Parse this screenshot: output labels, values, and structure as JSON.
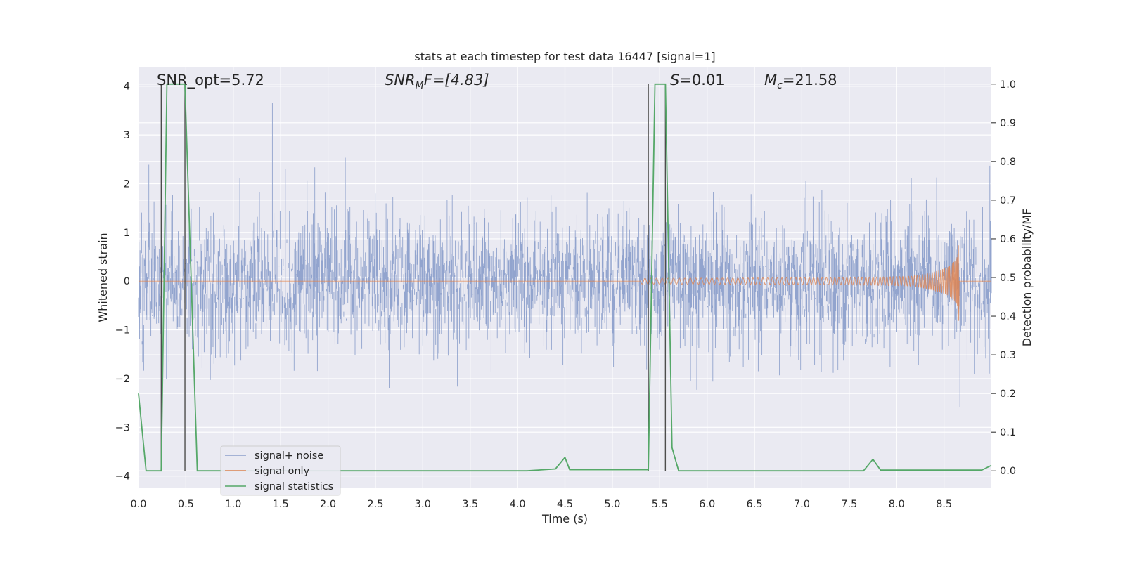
{
  "chart_data": {
    "type": "line",
    "title": "stats at each timestep for test data 16447 [signal=1]",
    "xlabel": "Time (s)",
    "ylabel_left": "Whitened strain",
    "ylabel_right": "Detection probability/MF",
    "xlim": [
      0,
      9.0
    ],
    "ylim_left": [
      -4.25,
      4.4
    ],
    "ylim_right": [
      -0.045,
      1.045
    ],
    "x_ticks": [
      "0.0",
      "0.5",
      "1.0",
      "1.5",
      "2.0",
      "2.5",
      "3.0",
      "3.5",
      "4.0",
      "4.5",
      "5.0",
      "5.5",
      "6.0",
      "6.5",
      "7.0",
      "7.5",
      "8.0",
      "8.5"
    ],
    "y_ticks_left": [
      "−4",
      "−3",
      "−2",
      "−1",
      "0",
      "1",
      "2",
      "3",
      "4"
    ],
    "y_ticks_right": [
      "0.0",
      "0.1",
      "0.2",
      "0.3",
      "0.4",
      "0.5",
      "0.6",
      "0.7",
      "0.8",
      "0.9",
      "1.0"
    ],
    "grid": true,
    "legend_position": "lower-left",
    "annotations": {
      "snr_opt": "SNR_opt=5.72",
      "snr_mf_base": "SNR",
      "snr_mf_sub": "M",
      "snr_mf_rest": "F=[4.83]",
      "s_italic": "S",
      "s_rest": "=0.01",
      "mc_italic": "M",
      "mc_sub": "c",
      "mc_rest": "=21.58"
    },
    "vertical_markers_x": [
      0.24,
      0.49,
      5.38,
      5.56
    ],
    "series": [
      {
        "name": "signal+ noise",
        "color": "#8da0cb",
        "axis": "left",
        "description_points": "noise band roughly spanning -2.8 to 2.8 with peaks up to 4.0"
      },
      {
        "name": "signal only",
        "color": "#dd8452",
        "axis": "left",
        "chirp_start_x": 5.3,
        "chirp_end_x": 8.66,
        "chirp_peak_amplitude": 1.1
      },
      {
        "name": "signal statistics",
        "color": "#55a868",
        "axis": "right",
        "x": [
          0.0,
          0.08,
          0.24,
          0.3,
          0.49,
          0.62,
          4.1,
          4.4,
          4.5,
          4.55,
          5.38,
          5.45,
          5.56,
          5.63,
          5.7,
          7.65,
          7.75,
          7.83,
          8.9,
          9.0
        ],
        "y": [
          0.2,
          0.0,
          0.0,
          1.0,
          1.0,
          0.0,
          0.0,
          0.005,
          0.035,
          0.003,
          0.003,
          1.0,
          1.0,
          0.06,
          0.0,
          0.0,
          0.03,
          0.002,
          0.002,
          0.014
        ]
      }
    ]
  }
}
